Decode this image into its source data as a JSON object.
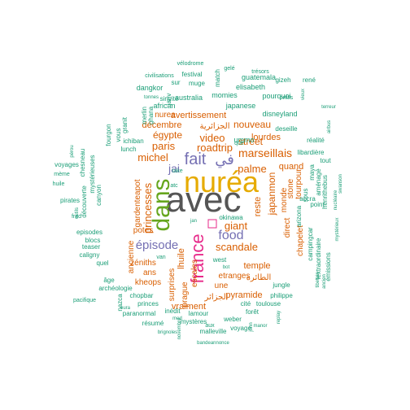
{
  "words": [
    {
      "text": "avec",
      "color": "#555555"
    },
    {
      "text": "nuréa",
      "color": "#e6ab02"
    },
    {
      "text": "dans",
      "color": "#66a61e"
    },
    {
      "text": "france",
      "color": "#e7298a"
    },
    {
      "text": "fait",
      "color": "#7570b3"
    },
    {
      "text": "في",
      "color": "#7570b3"
    },
    {
      "text": "food",
      "color": "#7570b3"
    },
    {
      "text": "épisode",
      "color": "#7570b3"
    },
    {
      "text": "marseillais",
      "color": "#d95f02"
    },
    {
      "text": "video",
      "color": "#d95f02"
    },
    {
      "text": "paris",
      "color": "#d95f02"
    },
    {
      "text": "roadtrip",
      "color": "#d95f02"
    },
    {
      "text": "michel",
      "color": "#d95f02"
    },
    {
      "text": "jai",
      "color": "#7570b3"
    },
    {
      "text": "scandale",
      "color": "#d95f02"
    },
    {
      "text": "giant",
      "color": "#d95f02"
    },
    {
      "text": "palme",
      "color": "#d95f02"
    },
    {
      "text": "princesses",
      "color": "#d95f02"
    },
    {
      "text": "japanmon",
      "color": "#d95f02"
    },
    {
      "text": "street",
      "color": "#d95f02"
    },
    {
      "text": "nouveau",
      "color": "#d95f02"
    },
    {
      "text": "égypte",
      "color": "#d95f02"
    },
    {
      "text": "décembre",
      "color": "#d95f02"
    },
    {
      "text": "lourdes",
      "color": "#d95f02"
    },
    {
      "text": "avertissement",
      "color": "#d95f02"
    },
    {
      "text": "nurea",
      "color": "#d95f02"
    },
    {
      "text": "الجزائرية",
      "color": "#d95f02"
    },
    {
      "text": "gardenteapot",
      "color": "#d95f02"
    },
    {
      "text": "potes",
      "color": "#d95f02"
    },
    {
      "text": "ans",
      "color": "#d95f02"
    },
    {
      "text": "lhuile",
      "color": "#d95f02"
    },
    {
      "text": "reste",
      "color": "#d95f02"
    },
    {
      "text": "monde",
      "color": "#d95f02"
    },
    {
      "text": "stone",
      "color": "#d95f02"
    },
    {
      "text": "tourpour",
      "color": "#d95f02"
    },
    {
      "text": "quand",
      "color": "#d95f02"
    },
    {
      "text": "direct",
      "color": "#d95f02"
    },
    {
      "text": "temple",
      "color": "#d95f02"
    },
    {
      "text": "pyramide",
      "color": "#d95f02"
    },
    {
      "text": "etranges",
      "color": "#d95f02"
    },
    {
      "text": "une",
      "color": "#d95f02"
    },
    {
      "text": "vraiment",
      "color": "#d95f02"
    },
    {
      "text": "surprises",
      "color": "#d95f02"
    },
    {
      "text": "kheops",
      "color": "#d95f02"
    },
    {
      "text": "zéniths",
      "color": "#d95f02"
    },
    {
      "text": "ancienne",
      "color": "#d95f02"
    },
    {
      "text": "escales",
      "color": "#d95f02"
    },
    {
      "text": "prague",
      "color": "#d95f02"
    },
    {
      "text": "الجزائر",
      "color": "#d95f02"
    },
    {
      "text": "الطائرة",
      "color": "#d95f02"
    },
    {
      "text": "chapelet",
      "color": "#d95f02"
    },
    {
      "text": "ummo",
      "color": "#1b9e77"
    },
    {
      "text": "japanese",
      "color": "#1b9e77"
    },
    {
      "text": "elisabeth",
      "color": "#1b9e77"
    },
    {
      "text": "australia",
      "color": "#1b9e77"
    },
    {
      "text": "momies",
      "color": "#1b9e77"
    },
    {
      "text": "african",
      "color": "#1b9e77"
    },
    {
      "text": "pourquoi",
      "color": "#1b9e77"
    },
    {
      "text": "gizeh",
      "color": "#1b9e77"
    },
    {
      "text": "disneyland",
      "color": "#1b9e77"
    },
    {
      "text": "festival",
      "color": "#1b9e77"
    },
    {
      "text": "muge",
      "color": "#1b9e77"
    },
    {
      "text": "sur",
      "color": "#1b9e77"
    },
    {
      "text": "dangkor",
      "color": "#1b9e77"
    },
    {
      "text": "guatemala",
      "color": "#1b9e77"
    },
    {
      "text": "janv",
      "color": "#1b9e77"
    },
    {
      "text": "sinvite",
      "color": "#1b9e77"
    },
    {
      "text": "match",
      "color": "#1b9e77"
    },
    {
      "text": "ontils",
      "color": "#1b9e77"
    },
    {
      "text": "civilisations",
      "color": "#1b9e77"
    },
    {
      "text": "vélodrome",
      "color": "#1b9e77"
    },
    {
      "text": "gelé",
      "color": "#1b9e77"
    },
    {
      "text": "trésors",
      "color": "#1b9e77"
    },
    {
      "text": "tonnes",
      "color": "#1b9e77"
    },
    {
      "text": "merlin",
      "color": "#1b9e77"
    },
    {
      "text": "ghana",
      "color": "#1b9e77"
    },
    {
      "text": "fourgon",
      "color": "#1b9e77"
    },
    {
      "text": "granit",
      "color": "#1b9e77"
    },
    {
      "text": "ichiban",
      "color": "#1b9e77"
    },
    {
      "text": "lunch",
      "color": "#1b9e77"
    },
    {
      "text": "vous",
      "color": "#1b9e77"
    },
    {
      "text": "chesneau",
      "color": "#1b9e77"
    },
    {
      "text": "mystérieuses",
      "color": "#1b9e77"
    },
    {
      "text": "voyages",
      "color": "#1b9e77"
    },
    {
      "text": "canyon",
      "color": "#1b9e77"
    },
    {
      "text": "découverte",
      "color": "#1b9e77"
    },
    {
      "text": "pirates",
      "color": "#1b9e77"
    },
    {
      "text": "episodes",
      "color": "#1b9e77"
    },
    {
      "text": "blocs",
      "color": "#1b9e77"
    },
    {
      "text": "caligny",
      "color": "#1b9e77"
    },
    {
      "text": "teaser",
      "color": "#1b9e77"
    },
    {
      "text": "quel",
      "color": "#1b9e77"
    },
    {
      "text": "archéologie",
      "color": "#1b9e77"
    },
    {
      "text": "pacifique",
      "color": "#1b9e77"
    },
    {
      "text": "chopbar",
      "color": "#1b9e77"
    },
    {
      "text": "princes",
      "color": "#1b9e77"
    },
    {
      "text": "paranormal",
      "color": "#1b9e77"
    },
    {
      "text": "résumé",
      "color": "#1b9e77"
    },
    {
      "text": "inédit",
      "color": "#1b9e77"
    },
    {
      "text": "lamour",
      "color": "#1b9e77"
    },
    {
      "text": "mystères",
      "color": "#1b9e77"
    },
    {
      "text": "malleville",
      "color": "#1b9e77"
    },
    {
      "text": "weber",
      "color": "#1b9e77"
    },
    {
      "text": "voyage",
      "color": "#1b9e77"
    },
    {
      "text": "forêt",
      "color": "#1b9e77"
    },
    {
      "text": "cité",
      "color": "#1b9e77"
    },
    {
      "text": "toulouse",
      "color": "#1b9e77"
    },
    {
      "text": "jungle",
      "color": "#1b9e77"
    },
    {
      "text": "philippe",
      "color": "#1b9e77"
    },
    {
      "text": "arizona",
      "color": "#1b9e77"
    },
    {
      "text": "campingcar",
      "color": "#1b9e77"
    },
    {
      "text": "lextraordinaire",
      "color": "#1b9e77"
    },
    {
      "text": "émissions",
      "color": "#1b9e77"
    },
    {
      "text": "accra",
      "color": "#1b9e77"
    },
    {
      "text": "deseille",
      "color": "#1b9e77"
    },
    {
      "text": "réalité",
      "color": "#1b9e77"
    },
    {
      "text": "libardière",
      "color": "#1b9e77"
    },
    {
      "text": "tout",
      "color": "#1b9e77"
    },
    {
      "text": "rené",
      "color": "#1b9e77"
    },
    {
      "text": "maya",
      "color": "#1b9e77"
    },
    {
      "text": "aménagé",
      "color": "#1b9e77"
    },
    {
      "text": "henrithebus",
      "color": "#1b9e77"
    },
    {
      "text": "nucléaire",
      "color": "#1b9e77"
    },
    {
      "text": "swanson",
      "color": "#1b9e77"
    },
    {
      "text": "sous",
      "color": "#1b9e77"
    },
    {
      "text": "point",
      "color": "#1b9e77"
    },
    {
      "text": "okinawa",
      "color": "#1b9e77"
    },
    {
      "text": "west",
      "color": "#1b9e77"
    },
    {
      "text": "atc",
      "color": "#1b9e77"
    },
    {
      "text": "take",
      "color": "#1b9e77"
    },
    {
      "text": "bot",
      "color": "#1b9e77"
    },
    {
      "text": "van",
      "color": "#1b9e77"
    },
    {
      "text": "âge",
      "color": "#1b9e77"
    },
    {
      "text": "nazca",
      "color": "#1b9e77"
    },
    {
      "text": "huile",
      "color": "#1b9e77"
    },
    {
      "text": "mème",
      "color": "#1b9e77"
    },
    {
      "text": "pérou",
      "color": "#1b9e77"
    },
    {
      "text": "outils",
      "color": "#1b9e77"
    },
    {
      "text": "fred",
      "color": "#1b9e77"
    },
    {
      "text": "eura",
      "color": "#1b9e77"
    },
    {
      "text": "med",
      "color": "#1b9e77"
    },
    {
      "text": "brignoles",
      "color": "#1b9e77"
    },
    {
      "text": "bandeannonce",
      "color": "#1b9e77"
    },
    {
      "text": "novembre",
      "color": "#1b9e77"
    },
    {
      "text": "manor",
      "color": "#1b9e77"
    },
    {
      "text": "replay",
      "color": "#1b9e77"
    },
    {
      "text": "john",
      "color": "#1b9e77"
    },
    {
      "text": "aux",
      "color": "#1b9e77"
    },
    {
      "text": "ancien",
      "color": "#1b9e77"
    },
    {
      "text": "terreur",
      "color": "#1b9e77"
    },
    {
      "text": "airbus",
      "color": "#1b9e77"
    },
    {
      "text": "vieux",
      "color": "#1b9e77"
    },
    {
      "text": "que",
      "color": "#1b9e77"
    },
    {
      "text": "jan",
      "color": "#1b9e77"
    },
    {
      "text": "tibetain",
      "color": "#1b9e77"
    },
    {
      "text": "mystérieux",
      "color": "#1b9e77"
    }
  ]
}
